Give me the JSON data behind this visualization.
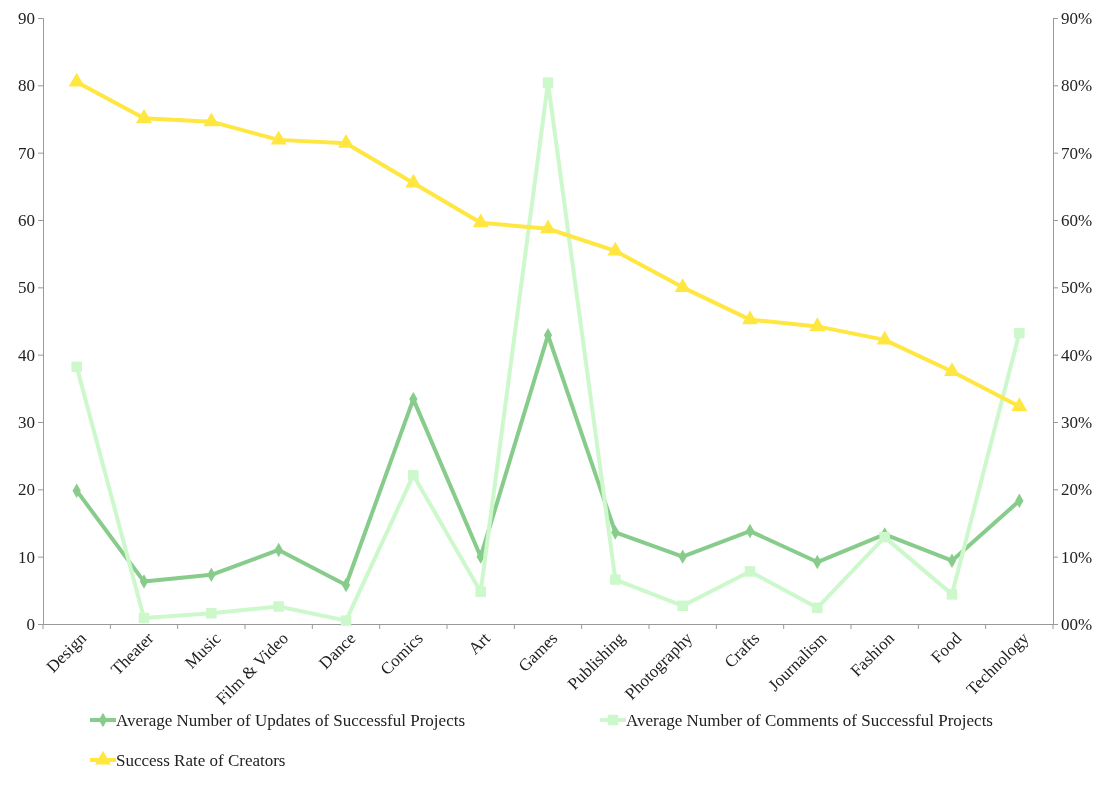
{
  "chart_data": {
    "type": "line",
    "categories": [
      "Design",
      "Theater",
      "Music",
      "Film & Video",
      "Dance",
      "Comics",
      "Art",
      "Games",
      "Publishing",
      "Photography",
      "Crafts",
      "Journalism",
      "Fashion",
      "Food",
      "Technology"
    ],
    "series": [
      {
        "name": "Average Number of Updates of Successful Projects",
        "color": "#88cc8c",
        "marker": "diamond",
        "values": [
          19.8,
          6.3,
          7.3,
          11.0,
          5.8,
          33.4,
          10.0,
          42.9,
          13.6,
          10.0,
          13.8,
          9.2,
          13.3,
          9.4,
          18.3
        ]
      },
      {
        "name": "Average Number of Comments of Successful Projects",
        "color": "#ccf8cc",
        "marker": "square",
        "values": [
          38.2,
          0.9,
          1.6,
          2.6,
          0.5,
          22.1,
          4.8,
          80.4,
          6.6,
          2.7,
          7.8,
          2.4,
          12.9,
          4.4,
          43.2
        ]
      },
      {
        "name": "Success Rate of Creators",
        "color": "#ffe640",
        "marker": "triangle",
        "axis": "y2",
        "values": [
          80.5,
          75.1,
          74.6,
          71.9,
          71.4,
          65.5,
          59.6,
          58.7,
          55.4,
          50.0,
          45.2,
          44.2,
          42.2,
          37.5,
          32.3
        ]
      }
    ],
    "ylim": [
      0,
      90
    ],
    "yticks": [
      0,
      10,
      20,
      30,
      40,
      50,
      60,
      70,
      80,
      90
    ],
    "y2lim": [
      0,
      90
    ],
    "y2ticks": [
      {
        "value": 0,
        "label": "00%"
      },
      {
        "value": 10,
        "label": "10%"
      },
      {
        "value": 20,
        "label": "20%"
      },
      {
        "value": 30,
        "label": "30%"
      },
      {
        "value": 40,
        "label": "40%"
      },
      {
        "value": 50,
        "label": "50%"
      },
      {
        "value": 60,
        "label": "60%"
      },
      {
        "value": 70,
        "label": "70%"
      },
      {
        "value": 80,
        "label": "80%"
      },
      {
        "value": 90,
        "label": "90%"
      }
    ],
    "grid": false,
    "legend": "bottom",
    "line_style": "solid"
  }
}
